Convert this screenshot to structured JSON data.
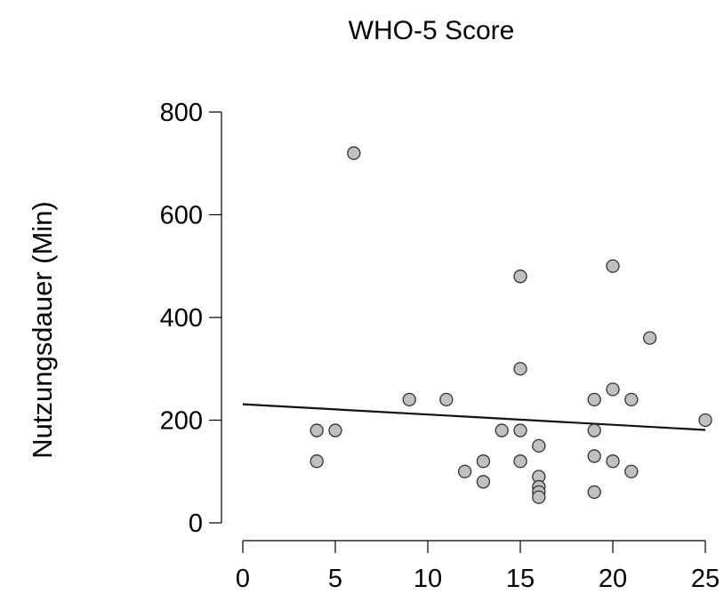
{
  "chart_data": {
    "type": "scatter",
    "title": "WHO-5 Score",
    "ylabel": "Nutzungsdauer (Min)",
    "xlabel": "",
    "xlim": [
      0,
      25
    ],
    "ylim": [
      0,
      800
    ],
    "xticks": [
      0,
      5,
      10,
      15,
      20,
      25
    ],
    "yticks": [
      0,
      200,
      400,
      600,
      800
    ],
    "grid": false,
    "point_fill": "#c0c0c0",
    "point_stroke": "#333333",
    "line_color": "#111111",
    "points": [
      {
        "x": 4,
        "y": 180
      },
      {
        "x": 4,
        "y": 120
      },
      {
        "x": 5,
        "y": 180
      },
      {
        "x": 6,
        "y": 720
      },
      {
        "x": 9,
        "y": 240
      },
      {
        "x": 11,
        "y": 240
      },
      {
        "x": 12,
        "y": 100
      },
      {
        "x": 13,
        "y": 120
      },
      {
        "x": 13,
        "y": 80
      },
      {
        "x": 14,
        "y": 180
      },
      {
        "x": 15,
        "y": 480
      },
      {
        "x": 15,
        "y": 300
      },
      {
        "x": 15,
        "y": 180
      },
      {
        "x": 15,
        "y": 120
      },
      {
        "x": 16,
        "y": 150
      },
      {
        "x": 16,
        "y": 90
      },
      {
        "x": 16,
        "y": 70
      },
      {
        "x": 16,
        "y": 60
      },
      {
        "x": 16,
        "y": 50
      },
      {
        "x": 19,
        "y": 240
      },
      {
        "x": 19,
        "y": 180
      },
      {
        "x": 19,
        "y": 130
      },
      {
        "x": 19,
        "y": 60
      },
      {
        "x": 20,
        "y": 500
      },
      {
        "x": 20,
        "y": 260
      },
      {
        "x": 20,
        "y": 120
      },
      {
        "x": 21,
        "y": 240
      },
      {
        "x": 21,
        "y": 100
      },
      {
        "x": 22,
        "y": 360
      },
      {
        "x": 25,
        "y": 200
      }
    ],
    "trend_line": {
      "x": [
        0,
        25
      ],
      "y": [
        231,
        181
      ]
    }
  }
}
